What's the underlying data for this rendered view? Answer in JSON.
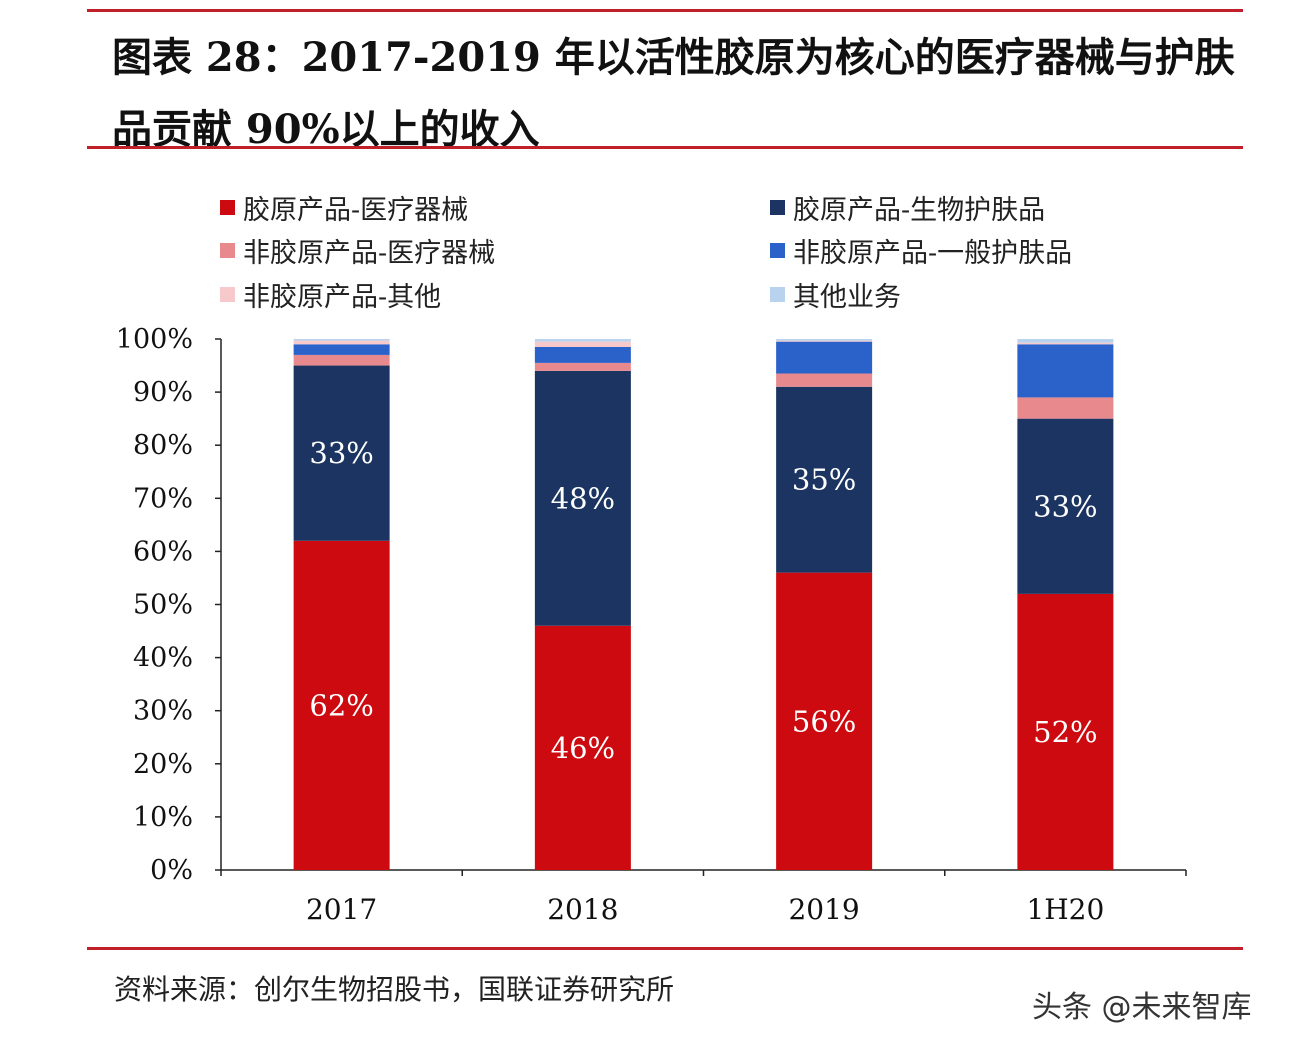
{
  "title": "图表 28：2017-2019 年以活性胶原为核心的医疗器械与护肤品贡献 90%以上的收入",
  "colors": {
    "rule": "#c0202a",
    "collagen_medical": "#cc0a0f",
    "collagen_skincare": "#1c3461",
    "noncollagen_medical": "#e8898e",
    "noncollagen_skincare": "#2b62c9",
    "noncollagen_other": "#f7c9cb",
    "other_business": "#b9d2ee"
  },
  "legend": [
    {
      "label": "胶原产品-医疗器械",
      "color": "#cc0a0f"
    },
    {
      "label": "胶原产品-生物护肤品",
      "color": "#1c3461"
    },
    {
      "label": "非胶原产品-医疗器械",
      "color": "#e8898e"
    },
    {
      "label": "非胶原产品-一般护肤品",
      "color": "#2b62c9"
    },
    {
      "label": "非胶原产品-其他",
      "color": "#f7c9cb"
    },
    {
      "label": "其他业务",
      "color": "#b9d2ee"
    }
  ],
  "chart_data": {
    "type": "bar",
    "stacked": true,
    "categories": [
      "2017",
      "2018",
      "2019",
      "1H20"
    ],
    "ylim": [
      0,
      100
    ],
    "yticks": [
      "0%",
      "10%",
      "20%",
      "30%",
      "40%",
      "50%",
      "60%",
      "70%",
      "80%",
      "90%",
      "100%"
    ],
    "series": [
      {
        "name": "胶原产品-医疗器械",
        "color": "#cc0a0f",
        "values": [
          62,
          46,
          56,
          52
        ],
        "labels": [
          "62%",
          "46%",
          "56%",
          "52%"
        ]
      },
      {
        "name": "胶原产品-生物护肤品",
        "color": "#1c3461",
        "values": [
          33,
          48,
          35,
          33
        ],
        "labels": [
          "33%",
          "48%",
          "35%",
          "33%"
        ]
      },
      {
        "name": "非胶原产品-医疗器械",
        "color": "#e8898e",
        "values": [
          2,
          1.5,
          2.5,
          4
        ],
        "labels": [
          "",
          "",
          "",
          ""
        ]
      },
      {
        "name": "非胶原产品-一般护肤品",
        "color": "#2b62c9",
        "values": [
          2,
          3,
          6,
          10
        ],
        "labels": [
          "",
          "",
          "",
          ""
        ]
      },
      {
        "name": "非胶原产品-其他",
        "color": "#f7c9cb",
        "values": [
          0.7,
          1,
          0.2,
          0.3
        ],
        "labels": [
          "",
          "",
          "",
          ""
        ]
      },
      {
        "name": "其他业务",
        "color": "#b9d2ee",
        "values": [
          0.3,
          0.5,
          0.3,
          0.7
        ],
        "labels": [
          "",
          "",
          "",
          ""
        ]
      }
    ]
  },
  "source": "资料来源：创尔生物招股书，国联证券研究所",
  "watermark": "头条 @未来智库"
}
